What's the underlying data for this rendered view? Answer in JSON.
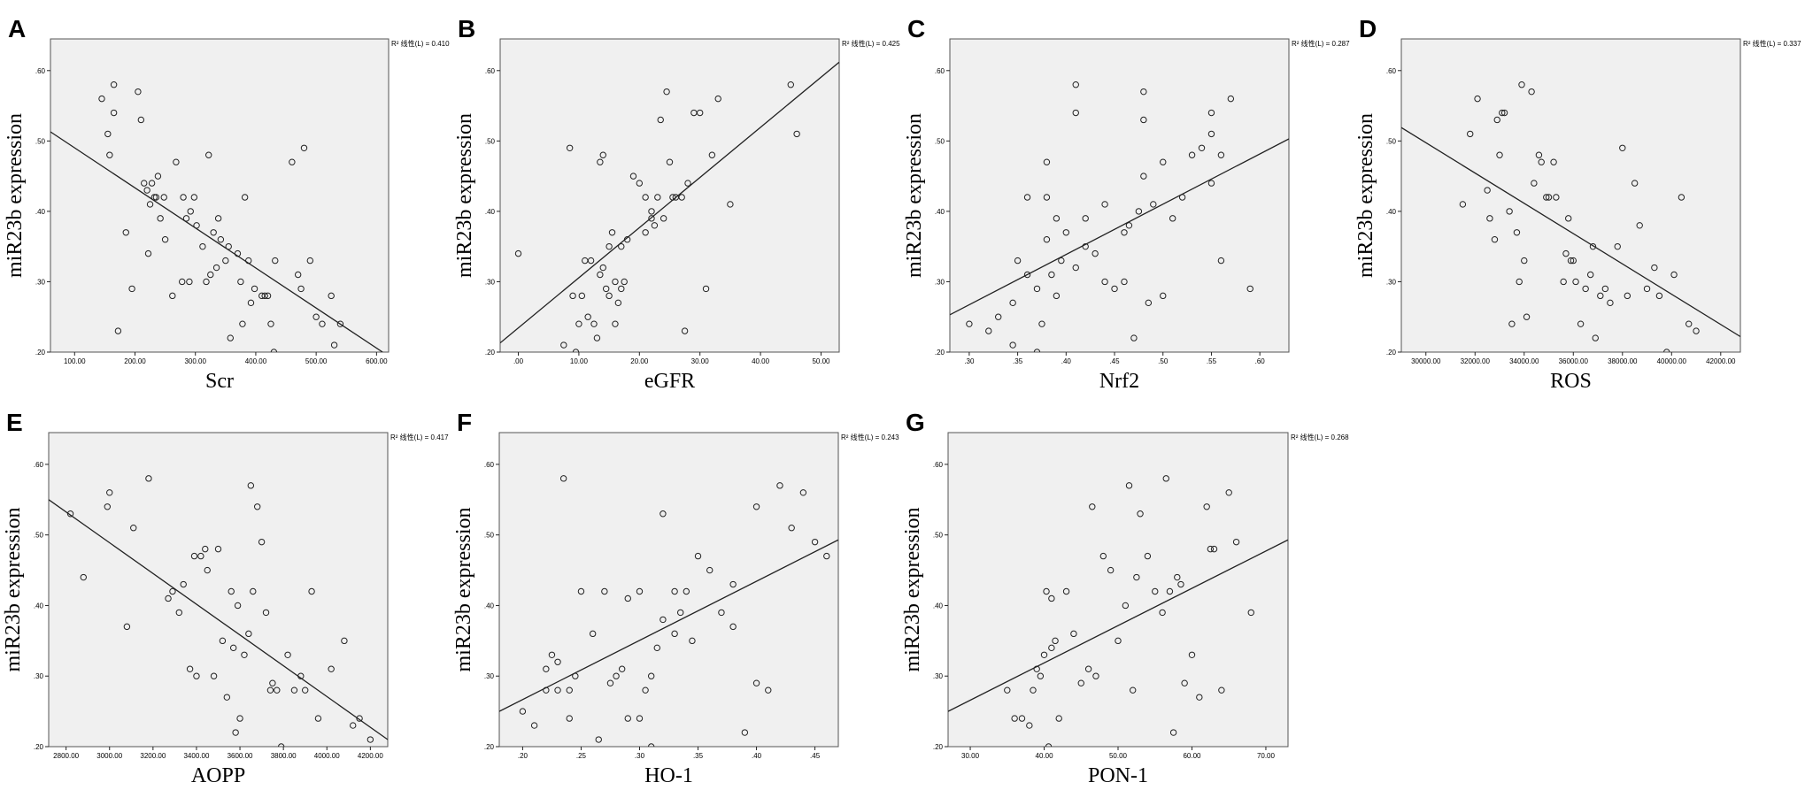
{
  "chart_data": [
    {
      "type": "scatter",
      "panel": "A",
      "xlabel": "Scr",
      "ylabel": "miR23b expression",
      "r2_label": "R² 线性(L) = 0.410",
      "xlim": [
        60,
        620
      ],
      "ylim": [
        0.2,
        0.645
      ],
      "xticks": [
        100,
        200,
        300,
        400,
        500,
        600
      ],
      "xtick_labels": [
        "100.00",
        "200.00",
        "300.00",
        "400.00",
        "500.00",
        "600.00"
      ],
      "yticks": [
        0.2,
        0.3,
        0.4,
        0.5,
        0.6
      ],
      "ytick_labels": [
        ".20",
        ".30",
        ".40",
        ".50",
        ".60"
      ],
      "fit": [
        [
          60,
          0.513
        ],
        [
          610,
          0.2
        ]
      ],
      "x": [
        145,
        155,
        158,
        165,
        165,
        172,
        185,
        195,
        205,
        210,
        215,
        220,
        222,
        225,
        228,
        232,
        235,
        238,
        242,
        248,
        250,
        262,
        268,
        278,
        280,
        285,
        290,
        292,
        298,
        302,
        312,
        318,
        322,
        325,
        330,
        335,
        338,
        342,
        350,
        355,
        358,
        370,
        375,
        378,
        382,
        388,
        392,
        398,
        410,
        415,
        420,
        425,
        430,
        432,
        460,
        470,
        475,
        480,
        490,
        500,
        510,
        525,
        530,
        540
      ],
      "y": [
        0.56,
        0.51,
        0.48,
        0.58,
        0.54,
        0.23,
        0.37,
        0.29,
        0.57,
        0.53,
        0.44,
        0.43,
        0.34,
        0.41,
        0.44,
        0.42,
        0.42,
        0.45,
        0.39,
        0.42,
        0.36,
        0.28,
        0.47,
        0.3,
        0.42,
        0.39,
        0.3,
        0.4,
        0.42,
        0.38,
        0.35,
        0.3,
        0.48,
        0.31,
        0.37,
        0.32,
        0.39,
        0.36,
        0.33,
        0.35,
        0.22,
        0.34,
        0.3,
        0.24,
        0.42,
        0.33,
        0.27,
        0.29,
        0.28,
        0.28,
        0.28,
        0.24,
        0.2,
        0.33,
        0.47,
        0.31,
        0.29,
        0.49,
        0.33,
        0.25,
        0.24,
        0.28,
        0.21,
        0.24
      ]
    },
    {
      "type": "scatter",
      "panel": "B",
      "xlabel": "eGFR",
      "ylabel": "miR23b expression",
      "r2_label": "R² 线性(L) = 0.425",
      "xlim": [
        -3,
        53
      ],
      "ylim": [
        0.2,
        0.645
      ],
      "xticks": [
        0,
        10,
        20,
        30,
        40,
        50
      ],
      "xtick_labels": [
        ".00",
        "10.00",
        "20.00",
        "30.00",
        "40.00",
        "50.00"
      ],
      "yticks": [
        0.2,
        0.3,
        0.4,
        0.5,
        0.6
      ],
      "ytick_labels": [
        ".20",
        ".30",
        ".40",
        ".50",
        ".60"
      ],
      "fit": [
        [
          -3,
          0.213
        ],
        [
          53,
          0.612
        ]
      ],
      "x": [
        0,
        7.5,
        8.5,
        9,
        9.5,
        10,
        10.5,
        11,
        11.5,
        12,
        12.5,
        13,
        13.5,
        13.5,
        14,
        14,
        14.5,
        15,
        15,
        15.5,
        16,
        16,
        16.5,
        17,
        17,
        17.5,
        18,
        19,
        20,
        21,
        21,
        22,
        22,
        22.5,
        23,
        23.5,
        24,
        24.5,
        25,
        25.5,
        26,
        27,
        27.5,
        28,
        29,
        30,
        31,
        32,
        33,
        35,
        45,
        46
      ],
      "y": [
        0.34,
        0.21,
        0.49,
        0.28,
        0.2,
        0.24,
        0.28,
        0.33,
        0.25,
        0.33,
        0.24,
        0.22,
        0.47,
        0.31,
        0.48,
        0.32,
        0.29,
        0.35,
        0.28,
        0.37,
        0.3,
        0.24,
        0.27,
        0.29,
        0.35,
        0.3,
        0.36,
        0.45,
        0.44,
        0.37,
        0.42,
        0.4,
        0.39,
        0.38,
        0.42,
        0.53,
        0.39,
        0.57,
        0.47,
        0.42,
        0.42,
        0.42,
        0.23,
        0.44,
        0.54,
        0.54,
        0.29,
        0.48,
        0.56,
        0.41,
        0.58,
        0.51
      ]
    },
    {
      "type": "scatter",
      "panel": "C",
      "xlabel": "Nrf2",
      "ylabel": "miR23b expression",
      "r2_label": "R² 线性(L) = 0.287",
      "xlim": [
        0.28,
        0.63
      ],
      "ylim": [
        0.2,
        0.645
      ],
      "xticks": [
        0.3,
        0.35,
        0.4,
        0.45,
        0.5,
        0.55,
        0.6
      ],
      "xtick_labels": [
        ".30",
        ".35",
        ".40",
        ".45",
        ".50",
        ".55",
        ".60"
      ],
      "yticks": [
        0.2,
        0.3,
        0.4,
        0.5,
        0.6
      ],
      "ytick_labels": [
        ".20",
        ".30",
        ".40",
        ".50",
        ".60"
      ],
      "fit": [
        [
          0.28,
          0.253
        ],
        [
          0.63,
          0.503
        ]
      ],
      "x": [
        0.3,
        0.32,
        0.33,
        0.345,
        0.345,
        0.35,
        0.36,
        0.36,
        0.37,
        0.37,
        0.375,
        0.38,
        0.38,
        0.38,
        0.385,
        0.39,
        0.39,
        0.395,
        0.4,
        0.41,
        0.41,
        0.41,
        0.42,
        0.42,
        0.43,
        0.44,
        0.44,
        0.45,
        0.46,
        0.46,
        0.465,
        0.47,
        0.475,
        0.48,
        0.48,
        0.48,
        0.485,
        0.49,
        0.5,
        0.5,
        0.51,
        0.52,
        0.53,
        0.54,
        0.55,
        0.55,
        0.55,
        0.56,
        0.56,
        0.57,
        0.59
      ],
      "y": [
        0.24,
        0.23,
        0.25,
        0.21,
        0.27,
        0.33,
        0.42,
        0.31,
        0.2,
        0.29,
        0.24,
        0.47,
        0.42,
        0.36,
        0.31,
        0.39,
        0.28,
        0.33,
        0.37,
        0.58,
        0.54,
        0.32,
        0.39,
        0.35,
        0.34,
        0.41,
        0.3,
        0.29,
        0.37,
        0.3,
        0.38,
        0.22,
        0.4,
        0.57,
        0.53,
        0.45,
        0.27,
        0.41,
        0.47,
        0.28,
        0.39,
        0.42,
        0.48,
        0.49,
        0.54,
        0.51,
        0.44,
        0.48,
        0.33,
        0.56,
        0.29
      ]
    },
    {
      "type": "scatter",
      "panel": "D",
      "xlabel": "ROS",
      "ylabel": "miR23b expression",
      "r2_label": "R² 线性(L) = 0.337",
      "xlim": [
        29000,
        42800
      ],
      "ylim": [
        0.2,
        0.645
      ],
      "xticks": [
        30000,
        32000,
        34000,
        36000,
        38000,
        40000,
        42000
      ],
      "xtick_labels": [
        "30000.00",
        "32000.00",
        "34000.00",
        "36000.00",
        "38000.00",
        "40000.00",
        "42000.00"
      ],
      "yticks": [
        0.2,
        0.3,
        0.4,
        0.5,
        0.6
      ],
      "ytick_labels": [
        ".20",
        ".30",
        ".40",
        ".50",
        ".60"
      ],
      "fit": [
        [
          29000,
          0.519
        ],
        [
          42800,
          0.222
        ]
      ],
      "x": [
        31500,
        31800,
        32100,
        32500,
        32600,
        32800,
        32900,
        33000,
        33100,
        33200,
        33400,
        33500,
        33700,
        33800,
        33900,
        34000,
        34100,
        34300,
        34400,
        34600,
        34700,
        34900,
        35000,
        35200,
        35300,
        35600,
        35700,
        35800,
        35900,
        36000,
        36100,
        36300,
        36500,
        36700,
        36800,
        36900,
        37100,
        37300,
        37500,
        37800,
        38000,
        38200,
        38500,
        38700,
        39000,
        39300,
        39500,
        39800,
        40100,
        40400,
        40700,
        41000
      ],
      "y": [
        0.41,
        0.51,
        0.56,
        0.43,
        0.39,
        0.36,
        0.53,
        0.48,
        0.54,
        0.54,
        0.4,
        0.24,
        0.37,
        0.3,
        0.58,
        0.33,
        0.25,
        0.57,
        0.44,
        0.48,
        0.47,
        0.42,
        0.42,
        0.47,
        0.42,
        0.3,
        0.34,
        0.39,
        0.33,
        0.33,
        0.3,
        0.24,
        0.29,
        0.31,
        0.35,
        0.22,
        0.28,
        0.29,
        0.27,
        0.35,
        0.49,
        0.28,
        0.44,
        0.38,
        0.29,
        0.32,
        0.28,
        0.2,
        0.31,
        0.42,
        0.24,
        0.23
      ]
    },
    {
      "type": "scatter",
      "panel": "E",
      "xlabel": "AOPP",
      "ylabel": "miR23b expression",
      "r2_label": "R² 线性(L) = 0.417",
      "xlim": [
        2720,
        4280
      ],
      "ylim": [
        0.2,
        0.645
      ],
      "xticks": [
        2800,
        3000,
        3200,
        3400,
        3600,
        3800,
        4000,
        4200
      ],
      "xtick_labels": [
        "2800.00",
        "3000.00",
        "3200.00",
        "3400.00",
        "3600.00",
        "3800.00",
        "4000.00",
        "4200.00"
      ],
      "yticks": [
        0.2,
        0.3,
        0.4,
        0.5,
        0.6
      ],
      "ytick_labels": [
        ".20",
        ".30",
        ".40",
        ".50",
        ".60"
      ],
      "fit": [
        [
          2720,
          0.55
        ],
        [
          4280,
          0.21
        ]
      ],
      "x": [
        2820,
        2880,
        2990,
        3000,
        3080,
        3110,
        3180,
        3270,
        3290,
        3320,
        3340,
        3370,
        3390,
        3400,
        3420,
        3440,
        3450,
        3480,
        3500,
        3520,
        3540,
        3560,
        3570,
        3580,
        3590,
        3600,
        3620,
        3640,
        3650,
        3660,
        3680,
        3700,
        3720,
        3740,
        3750,
        3770,
        3790,
        3820,
        3850,
        3880,
        3900,
        3930,
        3960,
        4020,
        4080,
        4120,
        4150,
        4200
      ],
      "y": [
        0.53,
        0.44,
        0.54,
        0.56,
        0.37,
        0.51,
        0.58,
        0.41,
        0.42,
        0.39,
        0.43,
        0.31,
        0.47,
        0.3,
        0.47,
        0.48,
        0.45,
        0.3,
        0.48,
        0.35,
        0.27,
        0.42,
        0.34,
        0.22,
        0.4,
        0.24,
        0.33,
        0.36,
        0.57,
        0.42,
        0.54,
        0.49,
        0.39,
        0.28,
        0.29,
        0.28,
        0.2,
        0.33,
        0.28,
        0.3,
        0.28,
        0.42,
        0.24,
        0.31,
        0.35,
        0.23,
        0.24,
        0.21
      ]
    },
    {
      "type": "scatter",
      "panel": "F",
      "xlabel": "HO-1",
      "ylabel": "miR23b expression",
      "r2_label": "R² 线性(L) = 0.243",
      "xlim": [
        0.18,
        0.47
      ],
      "ylim": [
        0.2,
        0.645
      ],
      "xticks": [
        0.2,
        0.25,
        0.3,
        0.35,
        0.4,
        0.45
      ],
      "xtick_labels": [
        ".20",
        ".25",
        ".30",
        ".35",
        ".40",
        ".45"
      ],
      "yticks": [
        0.2,
        0.3,
        0.4,
        0.5,
        0.6
      ],
      "ytick_labels": [
        ".20",
        ".30",
        ".40",
        ".50",
        ".60"
      ],
      "fit": [
        [
          0.18,
          0.25
        ],
        [
          0.47,
          0.493
        ]
      ],
      "x": [
        0.2,
        0.21,
        0.22,
        0.22,
        0.225,
        0.23,
        0.23,
        0.235,
        0.24,
        0.24,
        0.245,
        0.25,
        0.26,
        0.265,
        0.27,
        0.275,
        0.28,
        0.285,
        0.29,
        0.29,
        0.3,
        0.3,
        0.305,
        0.31,
        0.31,
        0.315,
        0.32,
        0.32,
        0.33,
        0.33,
        0.335,
        0.34,
        0.345,
        0.35,
        0.36,
        0.37,
        0.38,
        0.38,
        0.39,
        0.4,
        0.4,
        0.41,
        0.42,
        0.43,
        0.44,
        0.45,
        0.46
      ],
      "y": [
        0.25,
        0.23,
        0.28,
        0.31,
        0.33,
        0.28,
        0.32,
        0.58,
        0.24,
        0.28,
        0.3,
        0.42,
        0.36,
        0.21,
        0.42,
        0.29,
        0.3,
        0.31,
        0.41,
        0.24,
        0.42,
        0.24,
        0.28,
        0.2,
        0.3,
        0.34,
        0.38,
        0.53,
        0.42,
        0.36,
        0.39,
        0.42,
        0.35,
        0.47,
        0.45,
        0.39,
        0.43,
        0.37,
        0.22,
        0.54,
        0.29,
        0.28,
        0.57,
        0.51,
        0.56,
        0.49,
        0.47
      ]
    },
    {
      "type": "scatter",
      "panel": "G",
      "xlabel": "PON-1",
      "ylabel": "miR23b expression",
      "r2_label": "R² 线性(L) = 0.268",
      "xlim": [
        27,
        73
      ],
      "ylim": [
        0.2,
        0.645
      ],
      "xticks": [
        30,
        40,
        50,
        60,
        70
      ],
      "xtick_labels": [
        "30.00",
        "40.00",
        "50.00",
        "60.00",
        "70.00"
      ],
      "yticks": [
        0.2,
        0.3,
        0.4,
        0.5,
        0.6
      ],
      "ytick_labels": [
        ".20",
        ".30",
        ".40",
        ".50",
        ".60"
      ],
      "fit": [
        [
          27,
          0.25
        ],
        [
          73,
          0.493
        ]
      ],
      "x": [
        35,
        36,
        37,
        38,
        38.5,
        39,
        39.5,
        40,
        40.3,
        40.6,
        41,
        41,
        41.5,
        42,
        43,
        44,
        45,
        46,
        46.5,
        47,
        48,
        49,
        50,
        51,
        51.5,
        52,
        52.5,
        53,
        54,
        55,
        56,
        56.5,
        57,
        57.5,
        58,
        58.5,
        59,
        60,
        61,
        62,
        62.5,
        63,
        64,
        65,
        66,
        68
      ],
      "y": [
        0.28,
        0.24,
        0.24,
        0.23,
        0.28,
        0.31,
        0.3,
        0.33,
        0.42,
        0.2,
        0.41,
        0.34,
        0.35,
        0.24,
        0.42,
        0.36,
        0.29,
        0.31,
        0.54,
        0.3,
        0.47,
        0.45,
        0.35,
        0.4,
        0.57,
        0.28,
        0.44,
        0.53,
        0.47,
        0.42,
        0.39,
        0.58,
        0.42,
        0.22,
        0.44,
        0.43,
        0.29,
        0.33,
        0.27,
        0.54,
        0.48,
        0.48,
        0.28,
        0.56,
        0.49,
        0.39
      ]
    }
  ]
}
